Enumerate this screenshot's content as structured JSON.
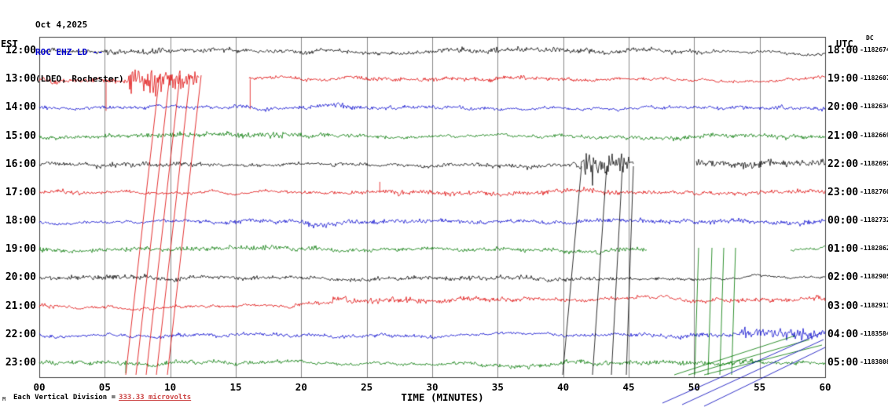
{
  "header": {
    "date": "Oct 4,2025",
    "station_line": "ROC EHZ LD --",
    "location_line": "(LDEO, Rochester)"
  },
  "axes": {
    "left_timezone": "EST",
    "right_timezone": "UTC",
    "dc_label": "DC",
    "x_title": "TIME (MINUTES)",
    "x_ticks": [
      "00",
      "05",
      "10",
      "15",
      "20",
      "25",
      "30",
      "35",
      "40",
      "45",
      "50",
      "55",
      "60"
    ]
  },
  "footer": {
    "scale_prefix": "Each Vertical Division =",
    "scale_value": "333.33 microvolts",
    "corner_mark": "M"
  },
  "chart_data": {
    "type": "line",
    "kind": "seismogram-helicorder",
    "x_unit": "minutes",
    "x_range": [
      0,
      60
    ],
    "minutes_per_row": 60,
    "vertical_division_microvolts": 333.33,
    "grid": {
      "x_step_minutes": 5,
      "color": "#8a8a8a"
    },
    "rows": [
      {
        "est": "12:00",
        "utc": "18:00",
        "counter": "-1182674",
        "color": "#000000",
        "amp": 3.2,
        "bursts": [
          [
            7.5,
            9.5,
            4.5
          ],
          [
            32,
            35,
            4.3
          ]
        ]
      },
      {
        "est": "13:00",
        "utc": "19:00",
        "counter": "-1182607",
        "color": "#dd0000",
        "amp": 3.0,
        "bursts": [
          [
            6.8,
            12.0,
            20,
            48
          ]
        ],
        "gaps": [
          [
            12.2,
            16.0
          ]
        ],
        "spikes": [
          [
            5.1,
            40
          ],
          [
            16.1,
            38
          ]
        ]
      },
      {
        "est": "14:00",
        "utc": "20:00",
        "counter": "-1182634",
        "color": "#0000cc",
        "amp": 3.2,
        "bursts": [
          [
            22.5,
            24.5,
            5
          ]
        ]
      },
      {
        "est": "15:00",
        "utc": "21:00",
        "counter": "-1182669",
        "color": "#007700",
        "amp": 3.4,
        "bursts": [
          [
            14,
            21,
            4.8
          ]
        ]
      },
      {
        "est": "16:00",
        "utc": "22:00",
        "counter": "-1182692",
        "color": "#000000",
        "amp": 3.6,
        "bursts": [
          [
            19,
            26,
            5
          ],
          [
            41,
            45,
            16,
            34
          ],
          [
            50.1,
            60,
            6.5
          ]
        ],
        "gaps": [
          [
            45.4,
            50.1
          ]
        ]
      },
      {
        "est": "17:00",
        "utc": "23:00",
        "counter": "-1182760",
        "color": "#dd0000",
        "amp": 3.2,
        "bursts": [
          [
            41,
            44.8,
            4.6
          ]
        ],
        "spikes": [
          [
            26,
            -14
          ]
        ]
      },
      {
        "est": "18:00",
        "utc": "00:00",
        "counter": "-1182732",
        "color": "#0000cc",
        "amp": 3.2
      },
      {
        "est": "19:00",
        "utc": "01:00",
        "counter": "-1182862",
        "color": "#007700",
        "amp": 3.4,
        "bursts": [
          [
            0,
            1.2,
            7
          ]
        ],
        "gaps": [
          [
            46.4,
            57.3
          ]
        ]
      },
      {
        "est": "20:00",
        "utc": "02:00",
        "counter": "-1182905",
        "color": "#000000",
        "amp": 3.2,
        "bursts": [
          [
            24,
            26,
            4.5
          ]
        ]
      },
      {
        "est": "21:00",
        "utc": "03:00",
        "counter": "-1182911",
        "color": "#dd0000",
        "amp": 2.4,
        "bursts": [
          [
            22.4,
            60,
            4.4
          ]
        ],
        "shifts": [
          [
            19.5,
            22.4,
            -4
          ],
          [
            22.4,
            60,
            -9
          ]
        ]
      },
      {
        "est": "22:00",
        "utc": "04:00",
        "counter": "-1183584",
        "color": "#0000cc",
        "amp": 2.8,
        "bursts": [
          [
            25,
            53.5,
            3.6
          ],
          [
            53.5,
            60,
            8
          ]
        ],
        "shifts": [
          [
            53.5,
            60,
            -3
          ]
        ]
      },
      {
        "est": "23:00",
        "utc": "05:00",
        "counter": "-1183808",
        "color": "#007700",
        "amp": 3.6,
        "bursts": [
          [
            0,
            1.5,
            5
          ]
        ],
        "spikes": [
          [
            6.6,
            13
          ]
        ]
      }
    ],
    "wrap_lines": [
      {
        "color": "#dd0000",
        "segments": [
          [
            160,
            478,
            203,
            96
          ],
          [
            173,
            478,
            216,
            96
          ],
          [
            186,
            478,
            229,
            96
          ],
          [
            199,
            478,
            242,
            96
          ],
          [
            213,
            478,
            256,
            96
          ]
        ]
      },
      {
        "color": "#000000",
        "segments": [
          [
            740,
            212,
            716,
            478
          ],
          [
            772,
            212,
            754,
            478
          ],
          [
            792,
            212,
            778,
            478
          ],
          [
            806,
            212,
            797,
            478
          ]
        ]
      },
      {
        "color": "#007700",
        "segments": [
          [
            889,
            316,
            884,
            478
          ],
          [
            906,
            316,
            901,
            478
          ],
          [
            921,
            316,
            916,
            478
          ],
          [
            936,
            316,
            931,
            478
          ]
        ]
      },
      {
        "color": "#007700",
        "segments": [
          [
            858,
            478,
            1012,
            428
          ],
          [
            876,
            478,
            1030,
            433
          ],
          [
            896,
            478,
            1046,
            440
          ]
        ]
      },
      {
        "color": "#0000bb",
        "segments": [
          [
            843,
            514,
            1046,
            424
          ],
          [
            868,
            516,
            1048,
            433
          ],
          [
            896,
            518,
            1050,
            443
          ]
        ]
      }
    ]
  }
}
